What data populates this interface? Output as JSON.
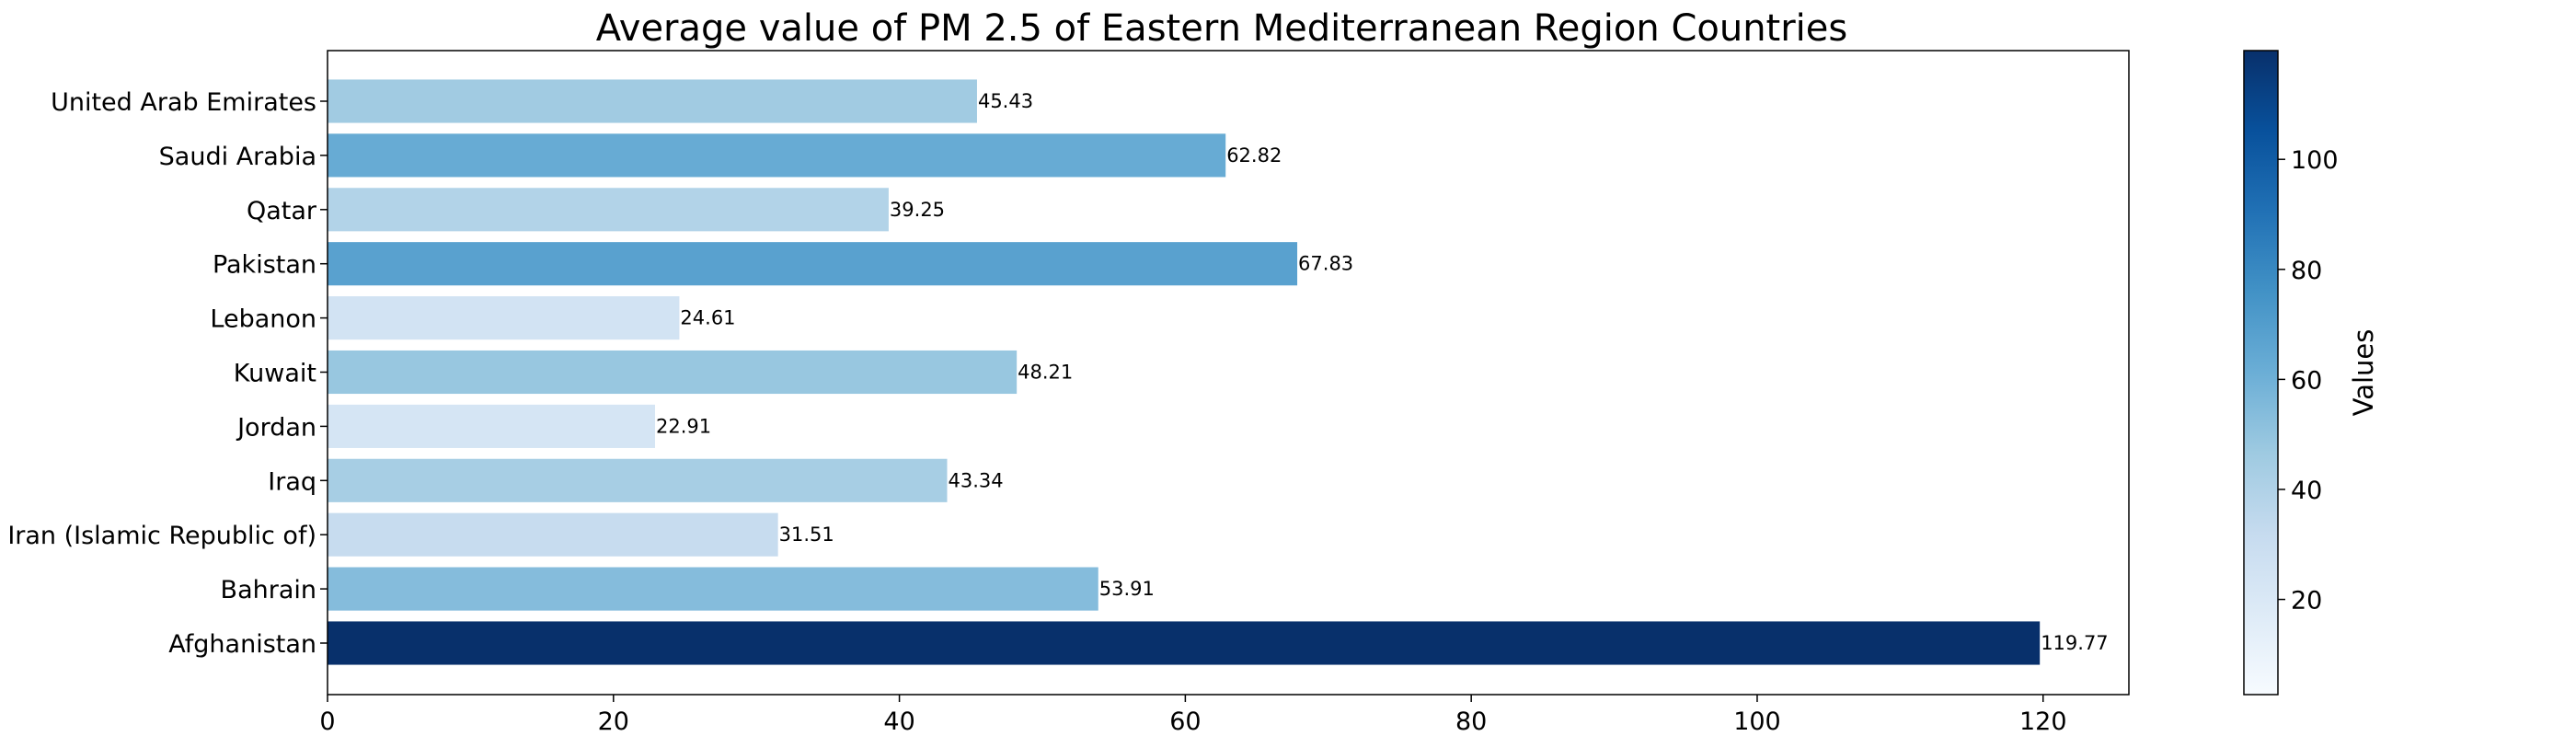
{
  "chart_data": {
    "type": "bar",
    "orientation": "horizontal",
    "title": "Average value of PM 2.5 of Eastern Mediterranean Region Countries",
    "categories": [
      "Afghanistan",
      "Bahrain",
      "Iran (Islamic Republic of)",
      "Iraq",
      "Jordan",
      "Kuwait",
      "Lebanon",
      "Pakistan",
      "Qatar",
      "Saudi Arabia",
      "United Arab Emirates"
    ],
    "values": [
      119.77,
      53.91,
      31.51,
      43.34,
      22.91,
      48.21,
      24.61,
      67.83,
      39.25,
      62.82,
      45.43
    ],
    "value_labels": [
      "119.77",
      "53.91",
      "31.51",
      "43.34",
      "22.91",
      "48.21",
      "24.61",
      "67.83",
      "39.25",
      "62.82",
      "45.43"
    ],
    "xlim": [
      0,
      126
    ],
    "xticks": [
      "0",
      "20",
      "40",
      "60",
      "80",
      "100",
      "120"
    ],
    "xlabel": "",
    "ylabel": "",
    "grid": false,
    "colormap": "Blues",
    "colorbar": {
      "label": "Values",
      "range": [
        2.7,
        119.77
      ],
      "ticks": [
        "20",
        "40",
        "60",
        "80",
        "100"
      ]
    }
  }
}
